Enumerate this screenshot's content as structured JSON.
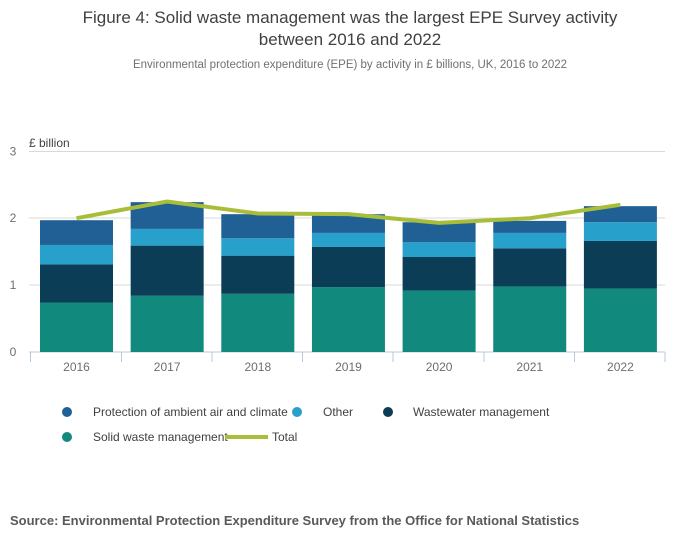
{
  "header": {
    "title": "Figure 4: Solid waste management was the largest EPE Survey activity between 2016 and 2022",
    "subtitle": "Environmental protection expenditure (EPE) by activity in £ billions, UK, 2016 to 2022"
  },
  "chart_data": {
    "type": "bar",
    "subtype": "stacked-bars-with-total-line",
    "unit_label": "£ billion",
    "categories": [
      "2016",
      "2017",
      "2018",
      "2019",
      "2020",
      "2021",
      "2022"
    ],
    "series": [
      {
        "name": "Solid waste management",
        "color": "#12897d",
        "values": [
          0.74,
          0.84,
          0.87,
          0.97,
          0.92,
          0.98,
          0.95
        ]
      },
      {
        "name": "Wastewater management",
        "color": "#0c3d57",
        "values": [
          0.57,
          0.75,
          0.57,
          0.6,
          0.5,
          0.57,
          0.71
        ]
      },
      {
        "name": "Other",
        "color": "#27a0cc",
        "values": [
          0.29,
          0.25,
          0.26,
          0.21,
          0.22,
          0.23,
          0.28
        ]
      },
      {
        "name": "Protection of ambient air and climate",
        "color": "#206095",
        "values": [
          0.37,
          0.4,
          0.36,
          0.28,
          0.3,
          0.18,
          0.24
        ]
      }
    ],
    "line_series": {
      "name": "Total",
      "color": "#a8bd3a",
      "values": [
        2.0,
        2.25,
        2.07,
        2.06,
        1.93,
        2.0,
        2.2
      ]
    },
    "xlabel": "",
    "ylabel": "£ billion",
    "ylim": [
      0,
      3
    ],
    "yticks": [
      0,
      1,
      2,
      3
    ],
    "grid": true,
    "legend_position": "bottom"
  },
  "legend": {
    "items": [
      {
        "label": "Protection of ambient air and climate",
        "swatch": "dot"
      },
      {
        "label": "Other",
        "swatch": "dot"
      },
      {
        "label": "Wastewater management",
        "swatch": "dot"
      },
      {
        "label": "Solid waste management",
        "swatch": "dot"
      },
      {
        "label": "Total",
        "swatch": "line"
      }
    ]
  },
  "source": "Source: Environmental Protection Expenditure Survey from the Office for National Statistics",
  "colors": {
    "gridline": "#d9d9d9",
    "axis": "#b8c9dc",
    "axis_text": "#6e6e6e",
    "unit_text": "#414042"
  }
}
